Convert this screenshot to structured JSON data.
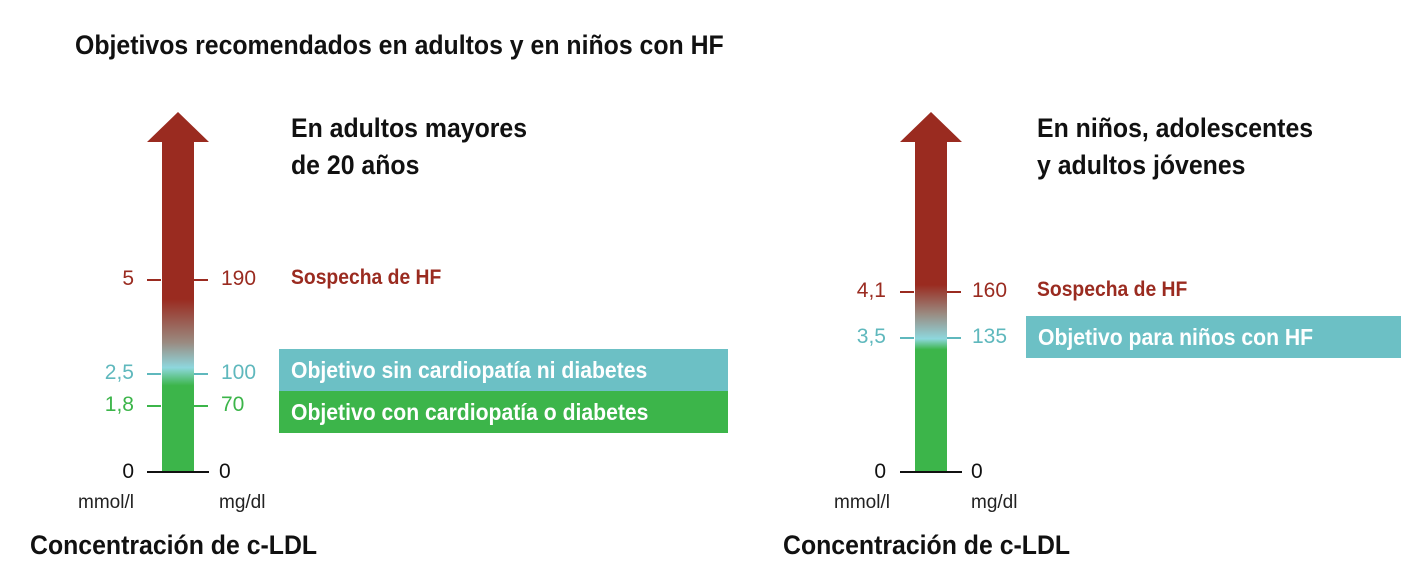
{
  "title": "Objetivos recomendados en adultos y en niños con HF",
  "colors": {
    "high": "#9a2b20",
    "target": "#6cc0c5",
    "safe": "#3cb54a",
    "axis": "#111111"
  },
  "units": {
    "left": "mmol/l",
    "right": "mg/dl"
  },
  "panels": [
    {
      "heading": [
        "En adultos mayores",
        "de 20 años"
      ],
      "footer": "Concentración de c-LDL",
      "suspicion_label": "Sospecha de HF",
      "ticks": [
        {
          "mmol": "5",
          "mgdl": "190",
          "color": "#9a2b20"
        },
        {
          "mmol": "2,5",
          "mgdl": "100",
          "color": "#5fb8bd"
        },
        {
          "mmol": "1,8",
          "mgdl": "70",
          "color": "#3cb54a"
        },
        {
          "mmol": "0",
          "mgdl": "0",
          "color": "#111111"
        }
      ],
      "bands": [
        {
          "label": "Objetivo sin cardiopatía ni diabetes",
          "color": "#6cc0c5"
        },
        {
          "label": "Objetivo con cardiopatía o diabetes",
          "color": "#3cb54a"
        }
      ]
    },
    {
      "heading": [
        "En niños, adolescentes",
        "y adultos jóvenes"
      ],
      "footer": "Concentración de c-LDL",
      "suspicion_label": "Sospecha de HF",
      "ticks": [
        {
          "mmol": "4,1",
          "mgdl": "160",
          "color": "#9a2b20"
        },
        {
          "mmol": "3,5",
          "mgdl": "135",
          "color": "#5fb8bd"
        },
        {
          "mmol": "0",
          "mgdl": "0",
          "color": "#111111"
        }
      ],
      "bands": [
        {
          "label": "Objetivo para niños con HF",
          "color": "#6cc0c5"
        }
      ]
    }
  ]
}
